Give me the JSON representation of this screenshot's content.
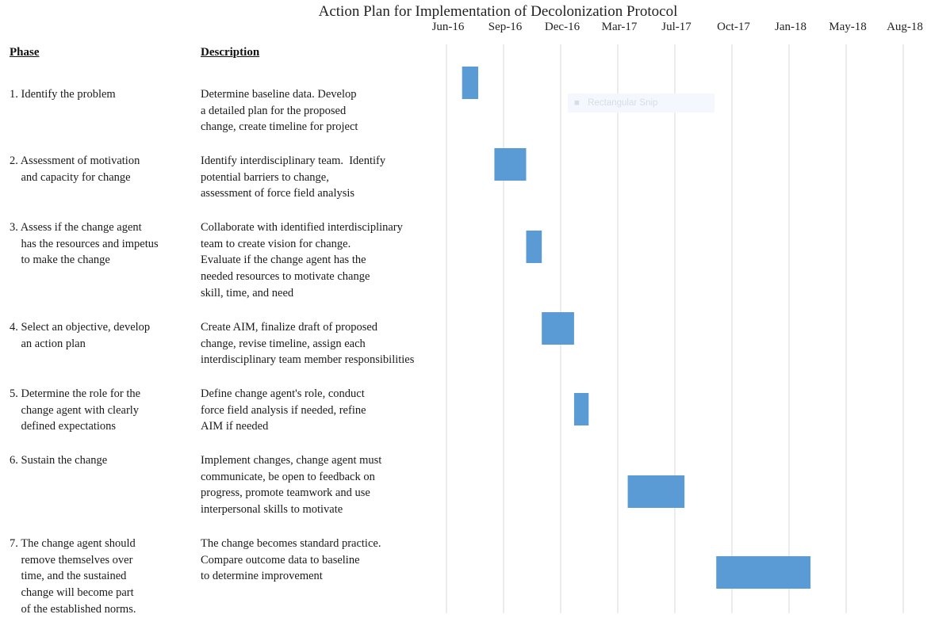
{
  "chart_data": {
    "type": "gantt",
    "title": "Action Plan for Implementation of Decolonization Protocol",
    "column_headers": {
      "phase": "Phase",
      "description": "Description"
    },
    "x_ticks": [
      "Jun-16",
      "Sep-16",
      "Dec-16",
      "Mar-17",
      "Jul-17",
      "Oct-17",
      "Jan-18",
      "May-18",
      "Aug-18"
    ],
    "x_range": [
      "2016-06-01",
      "2018-10-26"
    ],
    "grid": true,
    "bar_color": "#5b9bd5",
    "tasks": [
      {
        "phase": "1. Identify the problem",
        "description": "Determine baseline data. Develop\na detailed plan for the proposed\nchange, create timeline for project",
        "start": "2016-07-01",
        "end": "2016-08-01"
      },
      {
        "phase": "2. Assessment of motivation\n    and capacity for change",
        "description": "Identify interdisciplinary team.  Identify\npotential barriers to change,\nassessment of force field analysis",
        "start": "2016-09-01",
        "end": "2016-11-01"
      },
      {
        "phase": "3. Assess if the change agent\n    has the resources and impetus\n    to make the change",
        "description": "Collaborate with identified interdisciplinary\nteam to create vision for change.\nEvaluate if the change agent has the\nneeded resources to motivate change\nskill, time, and need",
        "start": "2016-11-01",
        "end": "2016-12-01"
      },
      {
        "phase": "4. Select an objective, develop\n    an action plan",
        "description": "Create AIM, finalize draft of proposed\nchange, revise timeline, assign each\ninterdisciplinary team member responsibilities",
        "start": "2016-12-01",
        "end": "2017-02-01"
      },
      {
        "phase": "5. Determine the role for the\n    change agent with clearly\n    defined expectations",
        "description": "Define change agent's role, conduct\nforce field analysis if needed, refine\nAIM if needed",
        "start": "2017-02-01",
        "end": "2017-03-01"
      },
      {
        "phase": "6. Sustain the change",
        "description": "Implement changes, change agent must\ncommunicate, be open to feedback on\nprogress, promote teamwork and use\ninterpersonal skills to motivate",
        "start": "2017-05-15",
        "end": "2017-09-01"
      },
      {
        "phase": "7. The change agent should\n    remove themselves over\n    time, and the sustained\n    change will become part\n    of the established norms.",
        "description": "The change becomes standard practice.\nCompare outcome data to baseline\nto determine improvement",
        "start": "2017-11-01",
        "end": "2018-05-01"
      }
    ]
  },
  "overlay": {
    "icon": "snip-icon",
    "label": "Rectangular Snip"
  }
}
